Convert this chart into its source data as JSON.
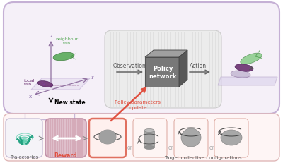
{
  "outer_box_fc": "#f5f0f8",
  "outer_box_ec": "#c5b0d5",
  "inner_grey_fc": "#ececec",
  "inner_grey_ec": "#cccccc",
  "cube_main": "#7a7a7a",
  "cube_top": "#999999",
  "cube_right": "#555555",
  "arrow_col": "#888888",
  "red_col": "#e05040",
  "green_fish": "#5aaa5a",
  "purple_fish": "#6a3070",
  "light_purple_fish": "#b0a0c0",
  "plane_fc": "#ddd5ee",
  "plane_ec": "#c0b0d0",
  "bottom_container_fc": "#fef5f5",
  "bottom_container_ec": "#e0b8b8",
  "traj_box_fc": "#f5f3f8",
  "traj_box_ec": "#c8c0d8",
  "reward_box_fc": "#e0c0cc",
  "reward_box_ec": "#c090a8",
  "reward_stripe": "#cc9aaa",
  "target1_fc": "#fef0ee",
  "target1_ec": "#e07060",
  "target_other_fc": "#fef5f4",
  "target_other_ec": "#e0b0a8",
  "planet_fc": "#a8a8a8",
  "planet_ec": "#888888",
  "labels": {
    "neighbour_fish": "neighbour\nfish",
    "focal_fish": "focal\nfish",
    "new_state": "New state",
    "observation": "Observation",
    "policy_network": "Policy\nnetwork",
    "action": "Action",
    "policy_update": "Policy parameters\nupdate",
    "trajectories": "Trajectories",
    "reward": "Reward",
    "target_configs": "Target collective configurations",
    "or": "or",
    "z": "z",
    "y": "y",
    "x": "x"
  }
}
